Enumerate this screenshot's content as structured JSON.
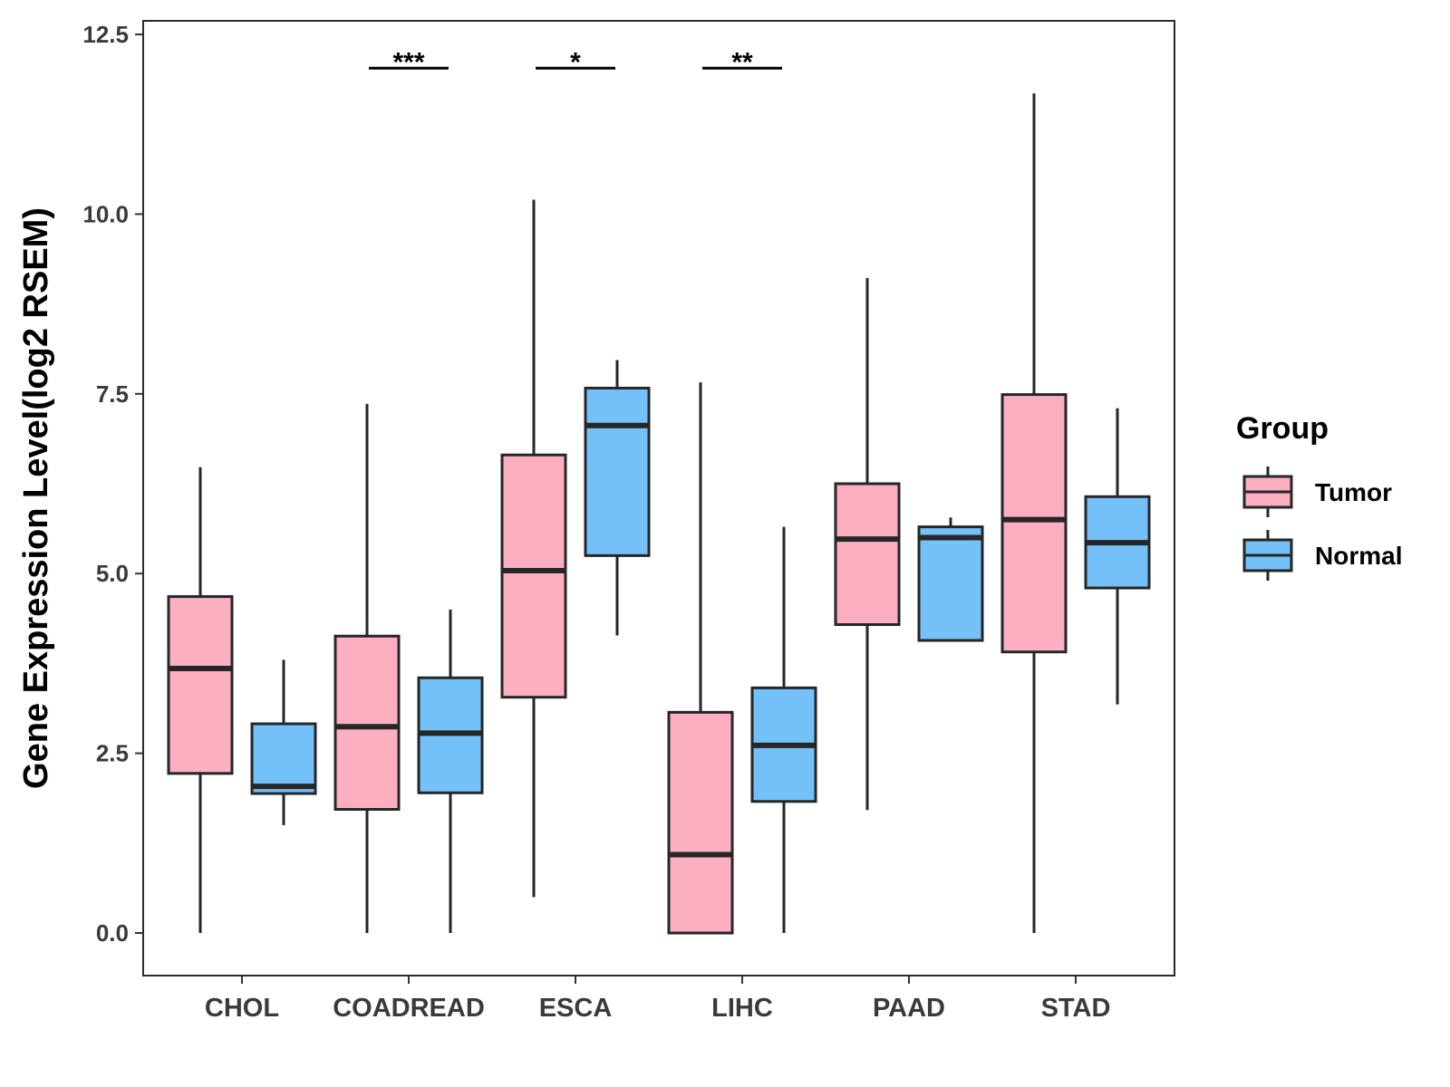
{
  "chart_data": {
    "type": "boxplot",
    "title": "",
    "xlabel": "",
    "ylabel": "Gene Expression Level(log2 RSEM)",
    "ylim": [
      -0.3,
      12.6
    ],
    "yticks": [
      "0.0",
      "2.5",
      "5.0",
      "7.5",
      "10.0",
      "12.5"
    ],
    "categories": [
      "CHOL",
      "COADREAD",
      "ESCA",
      "LIHC",
      "PAAD",
      "STAD"
    ],
    "legend": {
      "title": "Group",
      "placement": "right",
      "entries": [
        "Tumor",
        "Normal"
      ]
    },
    "series": [
      {
        "name": "Tumor",
        "color": "#FBAFC1",
        "boxes": [
          {
            "min": 0.0,
            "q1": 2.22,
            "median": 3.68,
            "q3": 4.68,
            "max": 6.48
          },
          {
            "min": 0.0,
            "q1": 1.72,
            "median": 2.87,
            "q3": 4.13,
            "max": 7.36
          },
          {
            "min": 0.5,
            "q1": 3.28,
            "median": 5.04,
            "q3": 6.65,
            "max": 10.2
          },
          {
            "min": 0.0,
            "q1": 0.0,
            "median": 1.09,
            "q3": 3.07,
            "max": 7.66
          },
          {
            "min": 1.71,
            "q1": 4.29,
            "median": 5.48,
            "q3": 6.25,
            "max": 9.11
          },
          {
            "min": 0.0,
            "q1": 3.91,
            "median": 5.75,
            "q3": 7.49,
            "max": 11.68
          }
        ]
      },
      {
        "name": "Normal",
        "color": "#74C0F8",
        "boxes": [
          {
            "min": 1.5,
            "q1": 1.94,
            "median": 2.04,
            "q3": 2.91,
            "max": 3.8
          },
          {
            "min": 0.0,
            "q1": 1.95,
            "median": 2.78,
            "q3": 3.55,
            "max": 4.5
          },
          {
            "min": 4.14,
            "q1": 5.25,
            "median": 7.06,
            "q3": 7.58,
            "max": 7.97
          },
          {
            "min": 0.0,
            "q1": 1.83,
            "median": 2.61,
            "q3": 3.41,
            "max": 5.65
          },
          {
            "min": 4.07,
            "q1": 4.07,
            "median": 5.5,
            "q3": 5.65,
            "max": 5.78
          },
          {
            "min": 3.18,
            "q1": 4.8,
            "median": 5.43,
            "q3": 6.07,
            "max": 7.3
          }
        ]
      }
    ],
    "significance": [
      {
        "category": "COADREAD",
        "label": "***",
        "y": 12.03
      },
      {
        "category": "ESCA",
        "label": "*",
        "y": 12.03
      },
      {
        "category": "LIHC",
        "label": "**",
        "y": 12.03
      }
    ]
  }
}
